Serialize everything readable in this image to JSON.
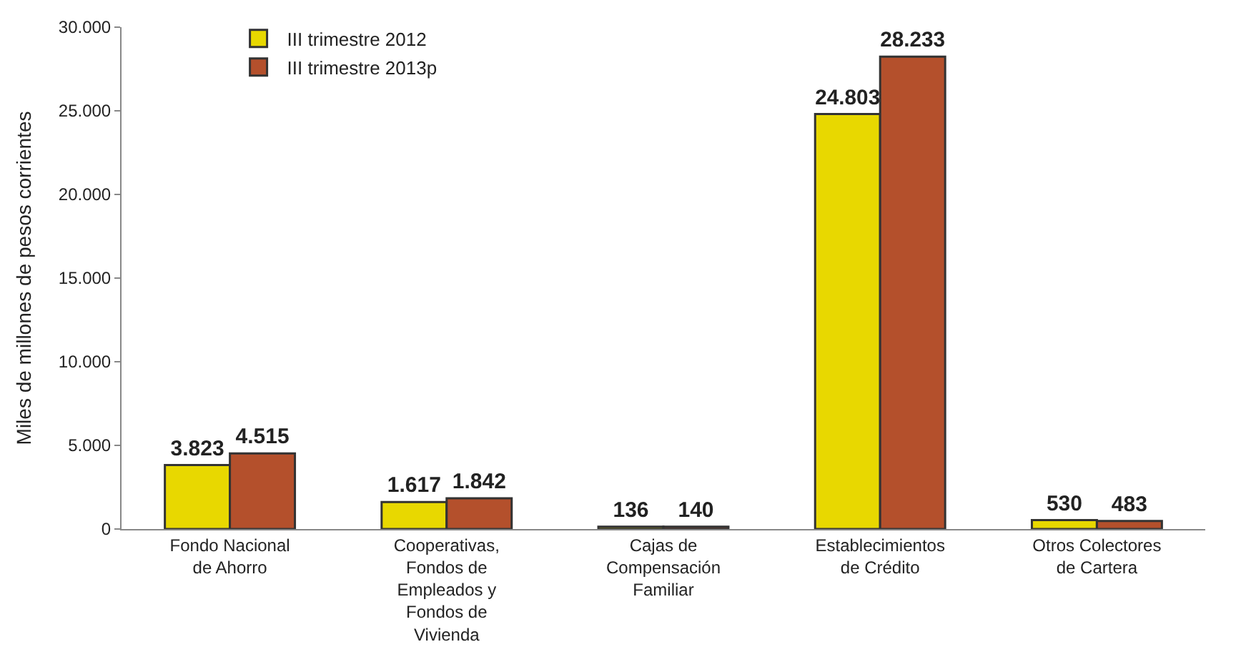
{
  "chart_data": {
    "type": "bar",
    "ylabel": "Miles de millones de pesos corrientes",
    "categories": [
      "Fondo Nacional de Ahorro",
      "Cooperativas, Fondos de Empleados y Fondos de Vivienda",
      "Cajas de Compensación Familiar",
      "Establecimientos de Crédito",
      "Otros Colectores de Cartera"
    ],
    "series": [
      {
        "name": "III trimestre 2012",
        "color": "#e8d800",
        "values": [
          3823,
          1617,
          136,
          24803,
          530
        ],
        "value_labels": [
          "3.823",
          "1.617",
          "136",
          "24.803",
          "530"
        ]
      },
      {
        "name": "III trimestre 2013p",
        "color": "#b4502c",
        "values": [
          4515,
          1842,
          140,
          28233,
          483
        ],
        "value_labels": [
          "4.515",
          "1.842",
          "140",
          "28.233",
          "483"
        ]
      }
    ],
    "ylim": [
      0,
      30000
    ],
    "yticks": [
      0,
      {
        "value": 5000,
        "label": "5.000"
      },
      {
        "value": 10000,
        "label": "10.000"
      },
      {
        "value": 15000,
        "label": "15.000"
      },
      {
        "value": 20000,
        "label": "20.000"
      },
      {
        "value": 25000,
        "label": "25.000"
      },
      {
        "value": 30000,
        "label": "30.000"
      }
    ],
    "legend": "top left"
  }
}
